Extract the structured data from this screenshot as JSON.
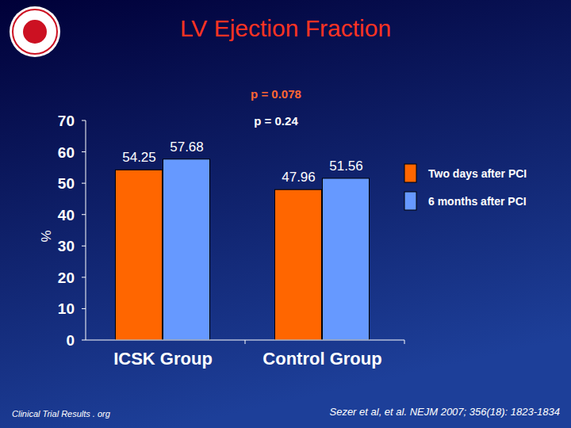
{
  "chart_data": {
    "type": "bar",
    "title": "LV Ejection Fraction",
    "y_label": "%",
    "categories": [
      "ICSK Group",
      "Control Group"
    ],
    "series": [
      {
        "name": "Two days after PCI",
        "color": "#ff6600",
        "values": [
          54.25,
          47.96
        ]
      },
      {
        "name": "6 months after PCI",
        "color": "#6699ff",
        "values": [
          57.68,
          51.56
        ]
      }
    ],
    "ylim": [
      0,
      70
    ],
    "yticks": [
      0,
      10,
      20,
      30,
      40,
      50,
      60,
      70
    ],
    "grid": false,
    "data_labels": true,
    "legend": "right",
    "annotations": [
      "p = 0.078",
      "p = 0.24"
    ],
    "footnotes": [
      "Clinical Trial Results . org",
      "Sezer et al, et al. NEJM 2007; 356(18): 1823-1834"
    ]
  }
}
